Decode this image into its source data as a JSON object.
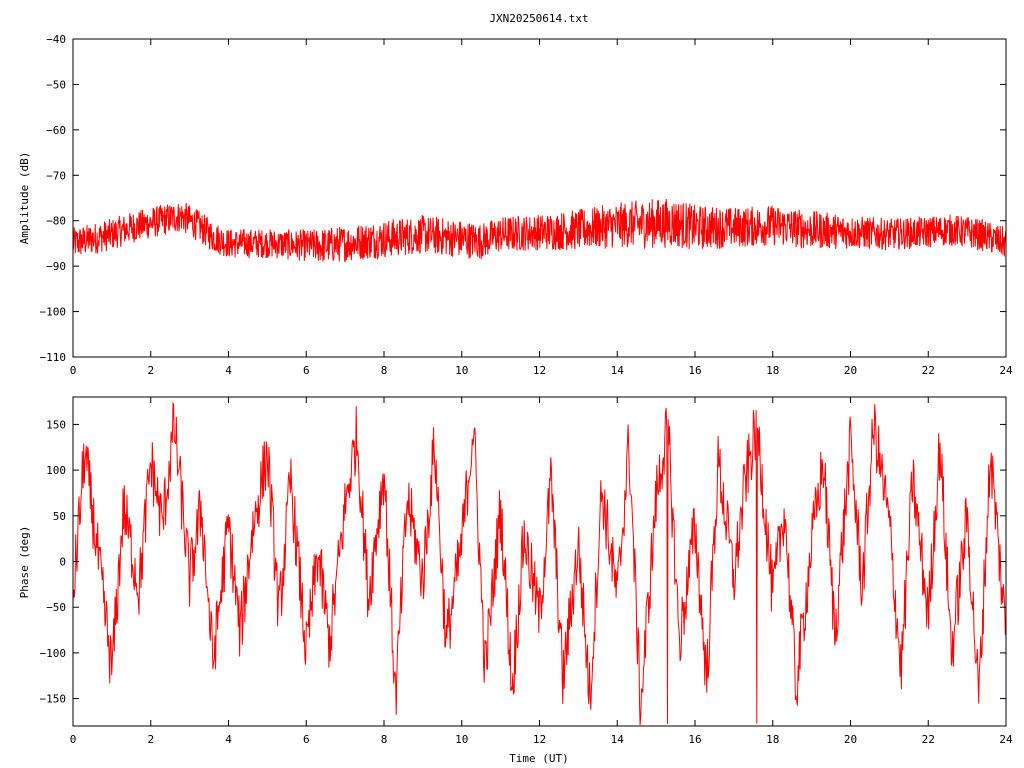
{
  "figure_title": "JXN20250614.txt",
  "colors": {
    "series": "#ff0000",
    "axes": "#000000",
    "background": "#ffffff"
  },
  "chart_data": [
    {
      "type": "line",
      "title": "JXN20250614.txt",
      "xlabel": "",
      "ylabel": "Amplitude (dB)",
      "xlim": [
        0,
        24
      ],
      "ylim": [
        -110,
        -40
      ],
      "xticks": [
        0,
        2,
        4,
        6,
        8,
        10,
        12,
        14,
        16,
        18,
        20,
        22,
        24
      ],
      "yticks": [
        -40,
        -50,
        -60,
        -70,
        -80,
        -90,
        -100,
        -110
      ],
      "grid": false,
      "series": [
        {
          "color": "#ff0000",
          "x": [
            0,
            0.5,
            1,
            1.5,
            2,
            2.5,
            2.8,
            3.2,
            3.6,
            4,
            5,
            6,
            6.5,
            7,
            8,
            9,
            10,
            10.5,
            11,
            12,
            13,
            14,
            15,
            15.5,
            16,
            17,
            18,
            19,
            20,
            21,
            22,
            22.5,
            23,
            23.5,
            24
          ],
          "y": [
            -85,
            -84,
            -83,
            -81.5,
            -80.5,
            -79.5,
            -79,
            -81,
            -83.5,
            -85,
            -85,
            -85.5,
            -85.5,
            -85,
            -84,
            -83,
            -84,
            -84.5,
            -83,
            -82.5,
            -82,
            -81,
            -80.5,
            -80.5,
            -81.5,
            -81.5,
            -81,
            -82,
            -82.5,
            -83,
            -82.5,
            -82,
            -82.5,
            -83.5,
            -85
          ],
          "spread": [
            7,
            7,
            7,
            7,
            7,
            7,
            7,
            7,
            7,
            6.5,
            6.5,
            7,
            8,
            8,
            8.5,
            8.5,
            8.5,
            8,
            8,
            8,
            9,
            10,
            11,
            11,
            10,
            9,
            9,
            8.5,
            7.5,
            7,
            7,
            7,
            7,
            7,
            7
          ]
        }
      ]
    },
    {
      "type": "line",
      "title": "",
      "xlabel": "Time (UT)",
      "ylabel": "Phase (deg)",
      "xlim": [
        0,
        24
      ],
      "ylim": [
        -180,
        180
      ],
      "xticks": [
        0,
        2,
        4,
        6,
        8,
        10,
        12,
        14,
        16,
        18,
        20,
        22,
        24
      ],
      "yticks": [
        150,
        100,
        50,
        0,
        -50,
        -100,
        -150
      ],
      "grid": false,
      "series": [
        {
          "color": "#ff0000",
          "x": [
            0,
            0.3,
            0.6,
            1,
            1.3,
            1.7,
            2,
            2.3,
            2.6,
            3,
            3.3,
            3.6,
            4,
            4.3,
            4.6,
            5,
            5.3,
            5.6,
            6,
            6.3,
            6.6,
            7,
            7.3,
            7.6,
            8,
            8.3,
            8.6,
            9,
            9.3,
            9.6,
            10,
            10.3,
            10.6,
            11,
            11.3,
            11.6,
            12,
            12.3,
            12.6,
            13,
            13.3,
            13.6,
            14,
            14.3,
            14.6,
            15,
            15.3,
            15.6,
            16,
            16.3,
            16.6,
            17,
            17.3,
            17.6,
            18,
            18.3,
            18.6,
            19,
            19.3,
            19.6,
            20,
            20.3,
            20.6,
            21,
            21.3,
            21.6,
            22,
            22.3,
            22.6,
            23,
            23.3,
            23.6,
            24
          ],
          "y": [
            -40,
            120,
            20,
            -120,
            60,
            -30,
            110,
            40,
            150,
            -20,
            60,
            -110,
            40,
            -80,
            30,
            120,
            -60,
            90,
            -100,
            10,
            -90,
            60,
            140,
            -40,
            100,
            -150,
            70,
            -20,
            130,
            -90,
            20,
            150,
            -120,
            60,
            -140,
            30,
            -60,
            90,
            -130,
            20,
            -150,
            80,
            -40,
            130,
            -160,
            70,
            150,
            -90,
            40,
            -130,
            110,
            -20,
            90,
            150,
            -40,
            60,
            -140,
            20,
            110,
            -80,
            130,
            -30,
            150,
            40,
            -120,
            90,
            -60,
            130,
            -100,
            50,
            -150,
            120,
            -80
          ]
        }
      ]
    }
  ]
}
